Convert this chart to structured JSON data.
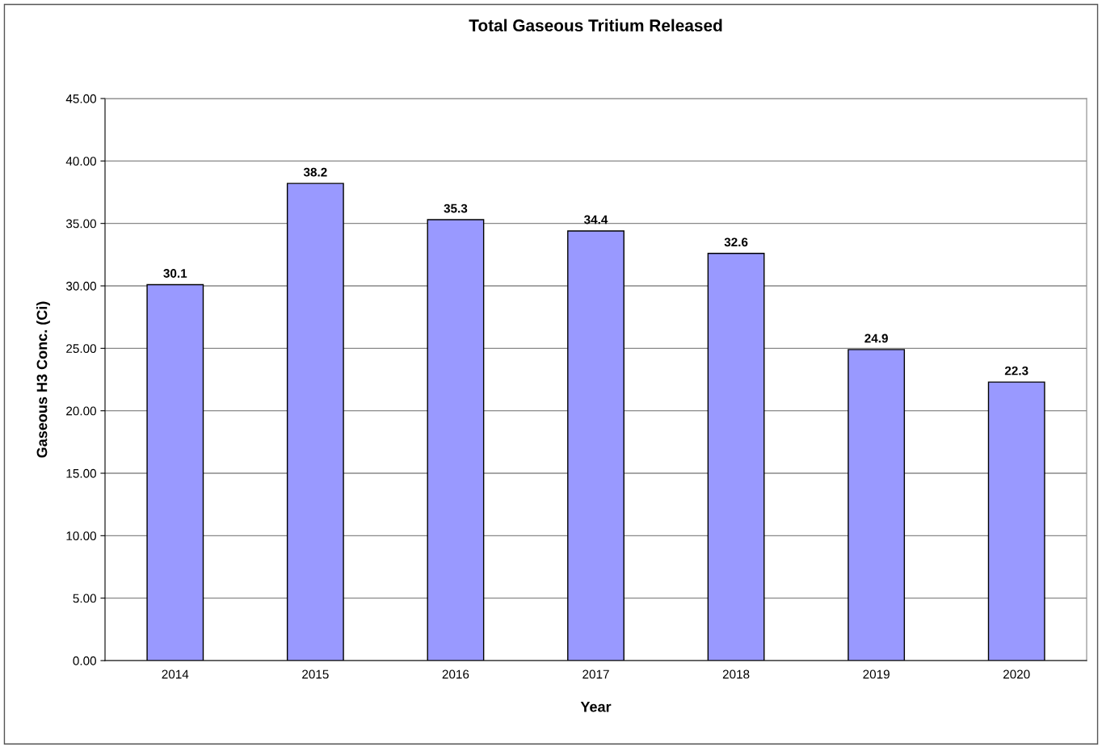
{
  "chart_data": {
    "type": "bar",
    "title": "Total Gaseous Tritium Released",
    "xlabel": "Year",
    "ylabel": "Gaseous H3 Conc. (Ci)",
    "categories": [
      "2014",
      "2015",
      "2016",
      "2017",
      "2018",
      "2019",
      "2020"
    ],
    "values": [
      30.1,
      38.2,
      35.3,
      34.4,
      32.6,
      24.9,
      22.3
    ],
    "color": "#9999ff",
    "data_labels": true,
    "ylim": [
      0,
      45
    ],
    "yticks": [
      {
        "value": 0,
        "label": "0.00"
      },
      {
        "value": 5,
        "label": "5.00"
      },
      {
        "value": 10,
        "label": "10.00"
      },
      {
        "value": 15,
        "label": "15.00"
      },
      {
        "value": 20,
        "label": "20.00"
      },
      {
        "value": 25,
        "label": "25.00"
      },
      {
        "value": 30,
        "label": "30.00"
      },
      {
        "value": 35,
        "label": "35.00"
      },
      {
        "value": 40,
        "label": "40.00"
      },
      {
        "value": 45,
        "label": "45.00"
      }
    ],
    "grid": "y",
    "legend": false
  }
}
